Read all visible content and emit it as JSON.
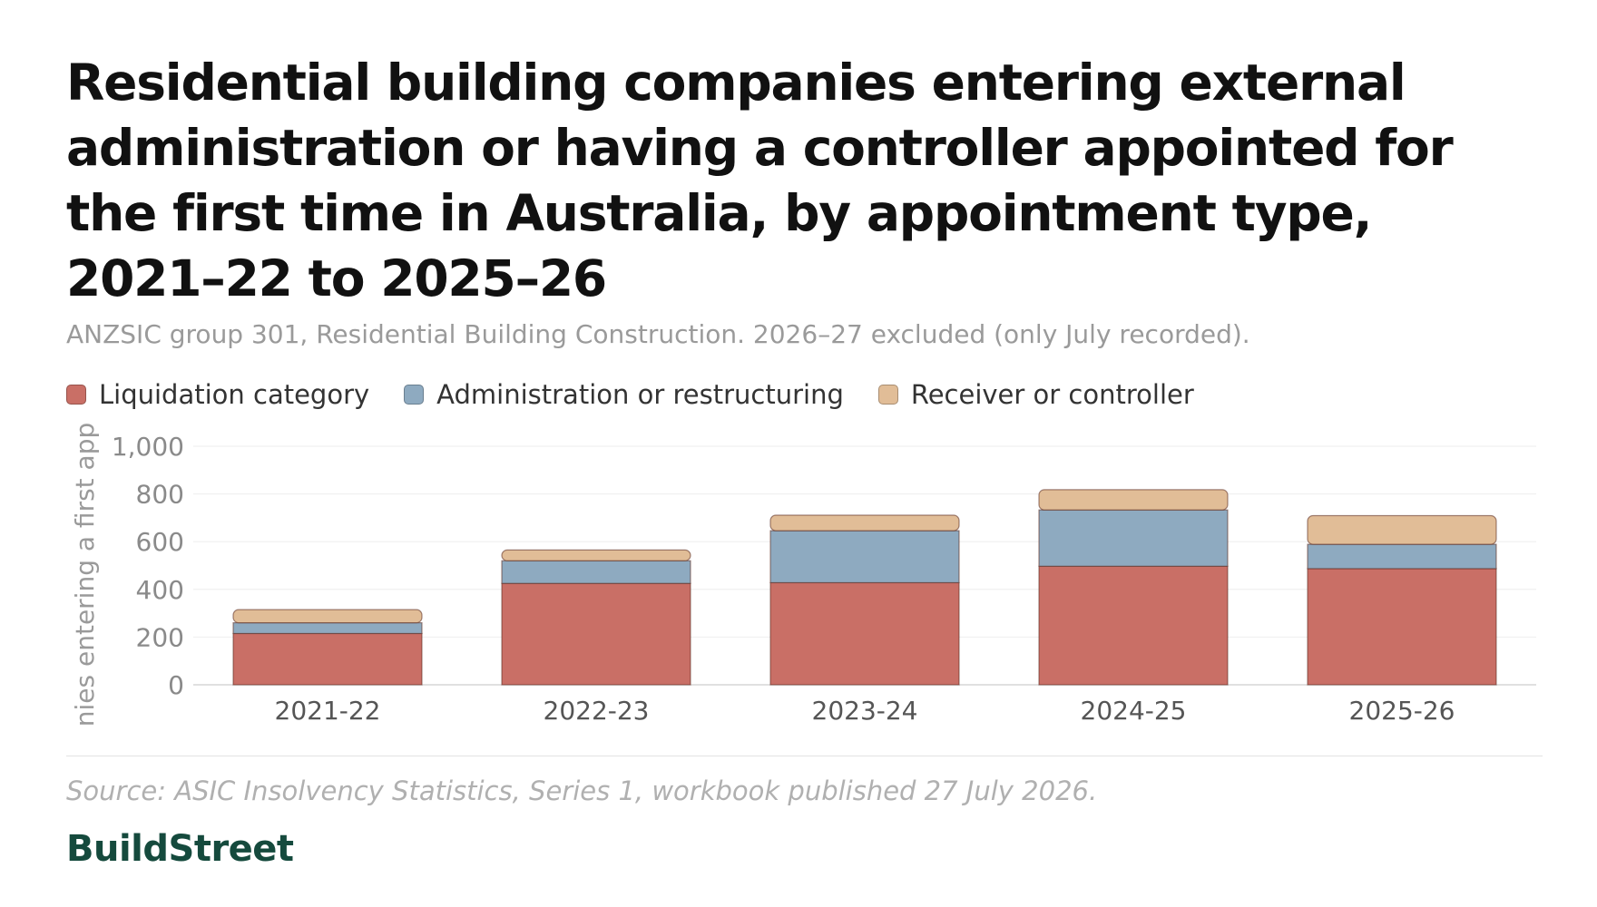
{
  "title": "Residential building companies entering external administration or having a controller appointed for the first time in Australia, by appointment type, 2021–22 to 2025–26",
  "subtitle": "ANZSIC group 301, Residential Building Construction. 2026–27 excluded (only July recorded).",
  "source": "Source: ASIC Insolvency Statistics, Series 1, workbook published 27 July 2026.",
  "brand": "BuildStreet",
  "colors": {
    "liquidation": "#c96f66",
    "administration": "#8eaac0",
    "receiver": "#e1bd97"
  },
  "chart_data": {
    "type": "bar",
    "stacked": true,
    "categories": [
      "2021-22",
      "2022-23",
      "2023-24",
      "2024-25",
      "2025-26"
    ],
    "series": [
      {
        "name": "Liquidation category",
        "values": [
          215,
          425,
          428,
          497,
          487
        ],
        "color_key": "liquidation"
      },
      {
        "name": "Administration or restructuring",
        "values": [
          45,
          95,
          218,
          236,
          102
        ],
        "color_key": "administration"
      },
      {
        "name": "Receiver or controller",
        "values": [
          55,
          45,
          65,
          85,
          120
        ],
        "color_key": "receiver"
      }
    ],
    "ylabel": "nies entering a first app",
    "ylim": [
      0,
      1000
    ],
    "yticks": [
      0,
      200,
      400,
      600,
      800,
      1000
    ],
    "ytick_labels": [
      "0",
      "200",
      "400",
      "600",
      "800",
      "1,000"
    ],
    "grid": true,
    "legend_position": "top-left"
  }
}
